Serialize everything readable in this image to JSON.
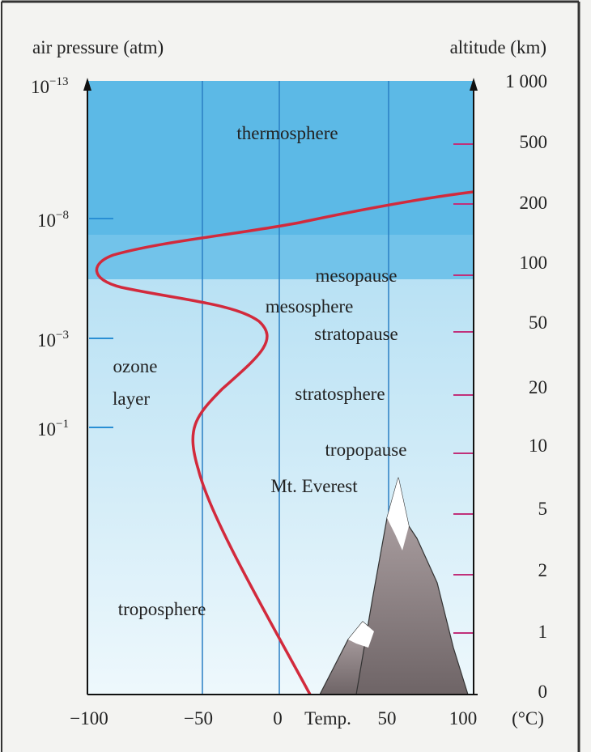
{
  "axes": {
    "left_title": "air pressure (atm)",
    "right_title": "altitude (km)",
    "left_ticks": [
      {
        "base": "10",
        "exp": "−13"
      },
      {
        "base": "10",
        "exp": "−8"
      },
      {
        "base": "10",
        "exp": "−3"
      },
      {
        "base": "10",
        "exp": "−1"
      }
    ],
    "right_ticks": [
      "1 000",
      "500",
      "200",
      "100",
      "50",
      "20",
      "10",
      "5",
      "2",
      "1",
      "0"
    ],
    "bottom_ticks": [
      "−100",
      "−50",
      "0",
      "50",
      "100"
    ],
    "bottom_label": "Temp.",
    "bottom_unit": "(°C)"
  },
  "regions": {
    "thermosphere": "thermosphere",
    "mesopause": "mesopause",
    "mesosphere": "mesosphere",
    "stratopause": "stratopause",
    "ozone_1": "ozone",
    "ozone_2": "layer",
    "stratosphere": "stratosphere",
    "tropopause": "tropopause",
    "everest": "Mt. Everest",
    "troposphere": "troposphere"
  }
}
